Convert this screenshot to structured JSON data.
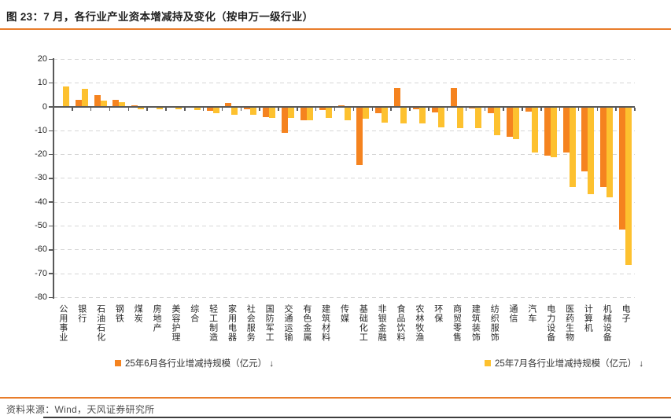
{
  "title": "图 23：7 月，各行业产业资本增减持及变化（按申万一级行业）",
  "source": "资料来源：Wind，天风证券研究所",
  "colors": {
    "june_bar": "#F5831F",
    "july_bar": "#FDC12F",
    "accent_rule": "#E87D2B",
    "axis": "#595959",
    "gridline": "#D6D6D6",
    "text": "#262626"
  },
  "legend": [
    {
      "label": "25年6月各行业增减持规模（亿元） ↓",
      "series": "june"
    },
    {
      "label": "25年7月各行业增减持规模（亿元） ↓",
      "series": "july"
    }
  ],
  "chart_data": {
    "type": "bar",
    "title": "图 23：7 月，各行业产业资本增减持及变化（按申万一级行业）",
    "xlabel": "",
    "ylabel": "亿元",
    "ylim": [
      -80,
      20
    ],
    "yticks": [
      20,
      10,
      0,
      -10,
      -20,
      -30,
      -40,
      -50,
      -60,
      -70,
      -80
    ],
    "grid": "horizontal-dashed",
    "legend_position": "bottom",
    "categories": [
      "公用事业",
      "银行",
      "石油石化",
      "钢铁",
      "煤炭",
      "房地产",
      "美容护理",
      "综合",
      "轻工制造",
      "家用电器",
      "社会服务",
      "国防军工",
      "交通运输",
      "有色金属",
      "建筑材料",
      "传媒",
      "基础化工",
      "非银金融",
      "食品饮料",
      "农林牧渔",
      "环保",
      "商贸零售",
      "建筑装饰",
      "纺织服饰",
      "通信",
      "汽车",
      "电力设备",
      "医药生物",
      "计算机",
      "机械设备",
      "电子"
    ],
    "series": [
      {
        "name": "25年6月各行业增减持规模（亿元）",
        "values": [
          0,
          3,
          5,
          3,
          0.5,
          -0.2,
          -0.2,
          -0.3,
          -1.6,
          1.5,
          -1,
          -4.4,
          -11,
          -5.6,
          -1.3,
          0.7,
          -24.5,
          -2.6,
          8,
          -1,
          -2.2,
          8,
          -0.5,
          -2.7,
          -12.6,
          -2.1,
          -20.3,
          -19,
          -27,
          -33.7,
          -51.5
        ]
      },
      {
        "name": "25年7月各行业增减持规模（亿元）",
        "values": [
          8.5,
          7.5,
          2.5,
          2,
          -1,
          -1,
          -1,
          -1.2,
          -2.5,
          -3.3,
          -3.3,
          -4.5,
          -4.5,
          -5.6,
          -4.5,
          -5.6,
          -5,
          -6.5,
          -6.8,
          -7,
          -8.5,
          -9,
          -9,
          -12,
          -13.4,
          -19,
          -21,
          -33.5,
          -36.5,
          -38,
          -66.5
        ]
      }
    ]
  }
}
